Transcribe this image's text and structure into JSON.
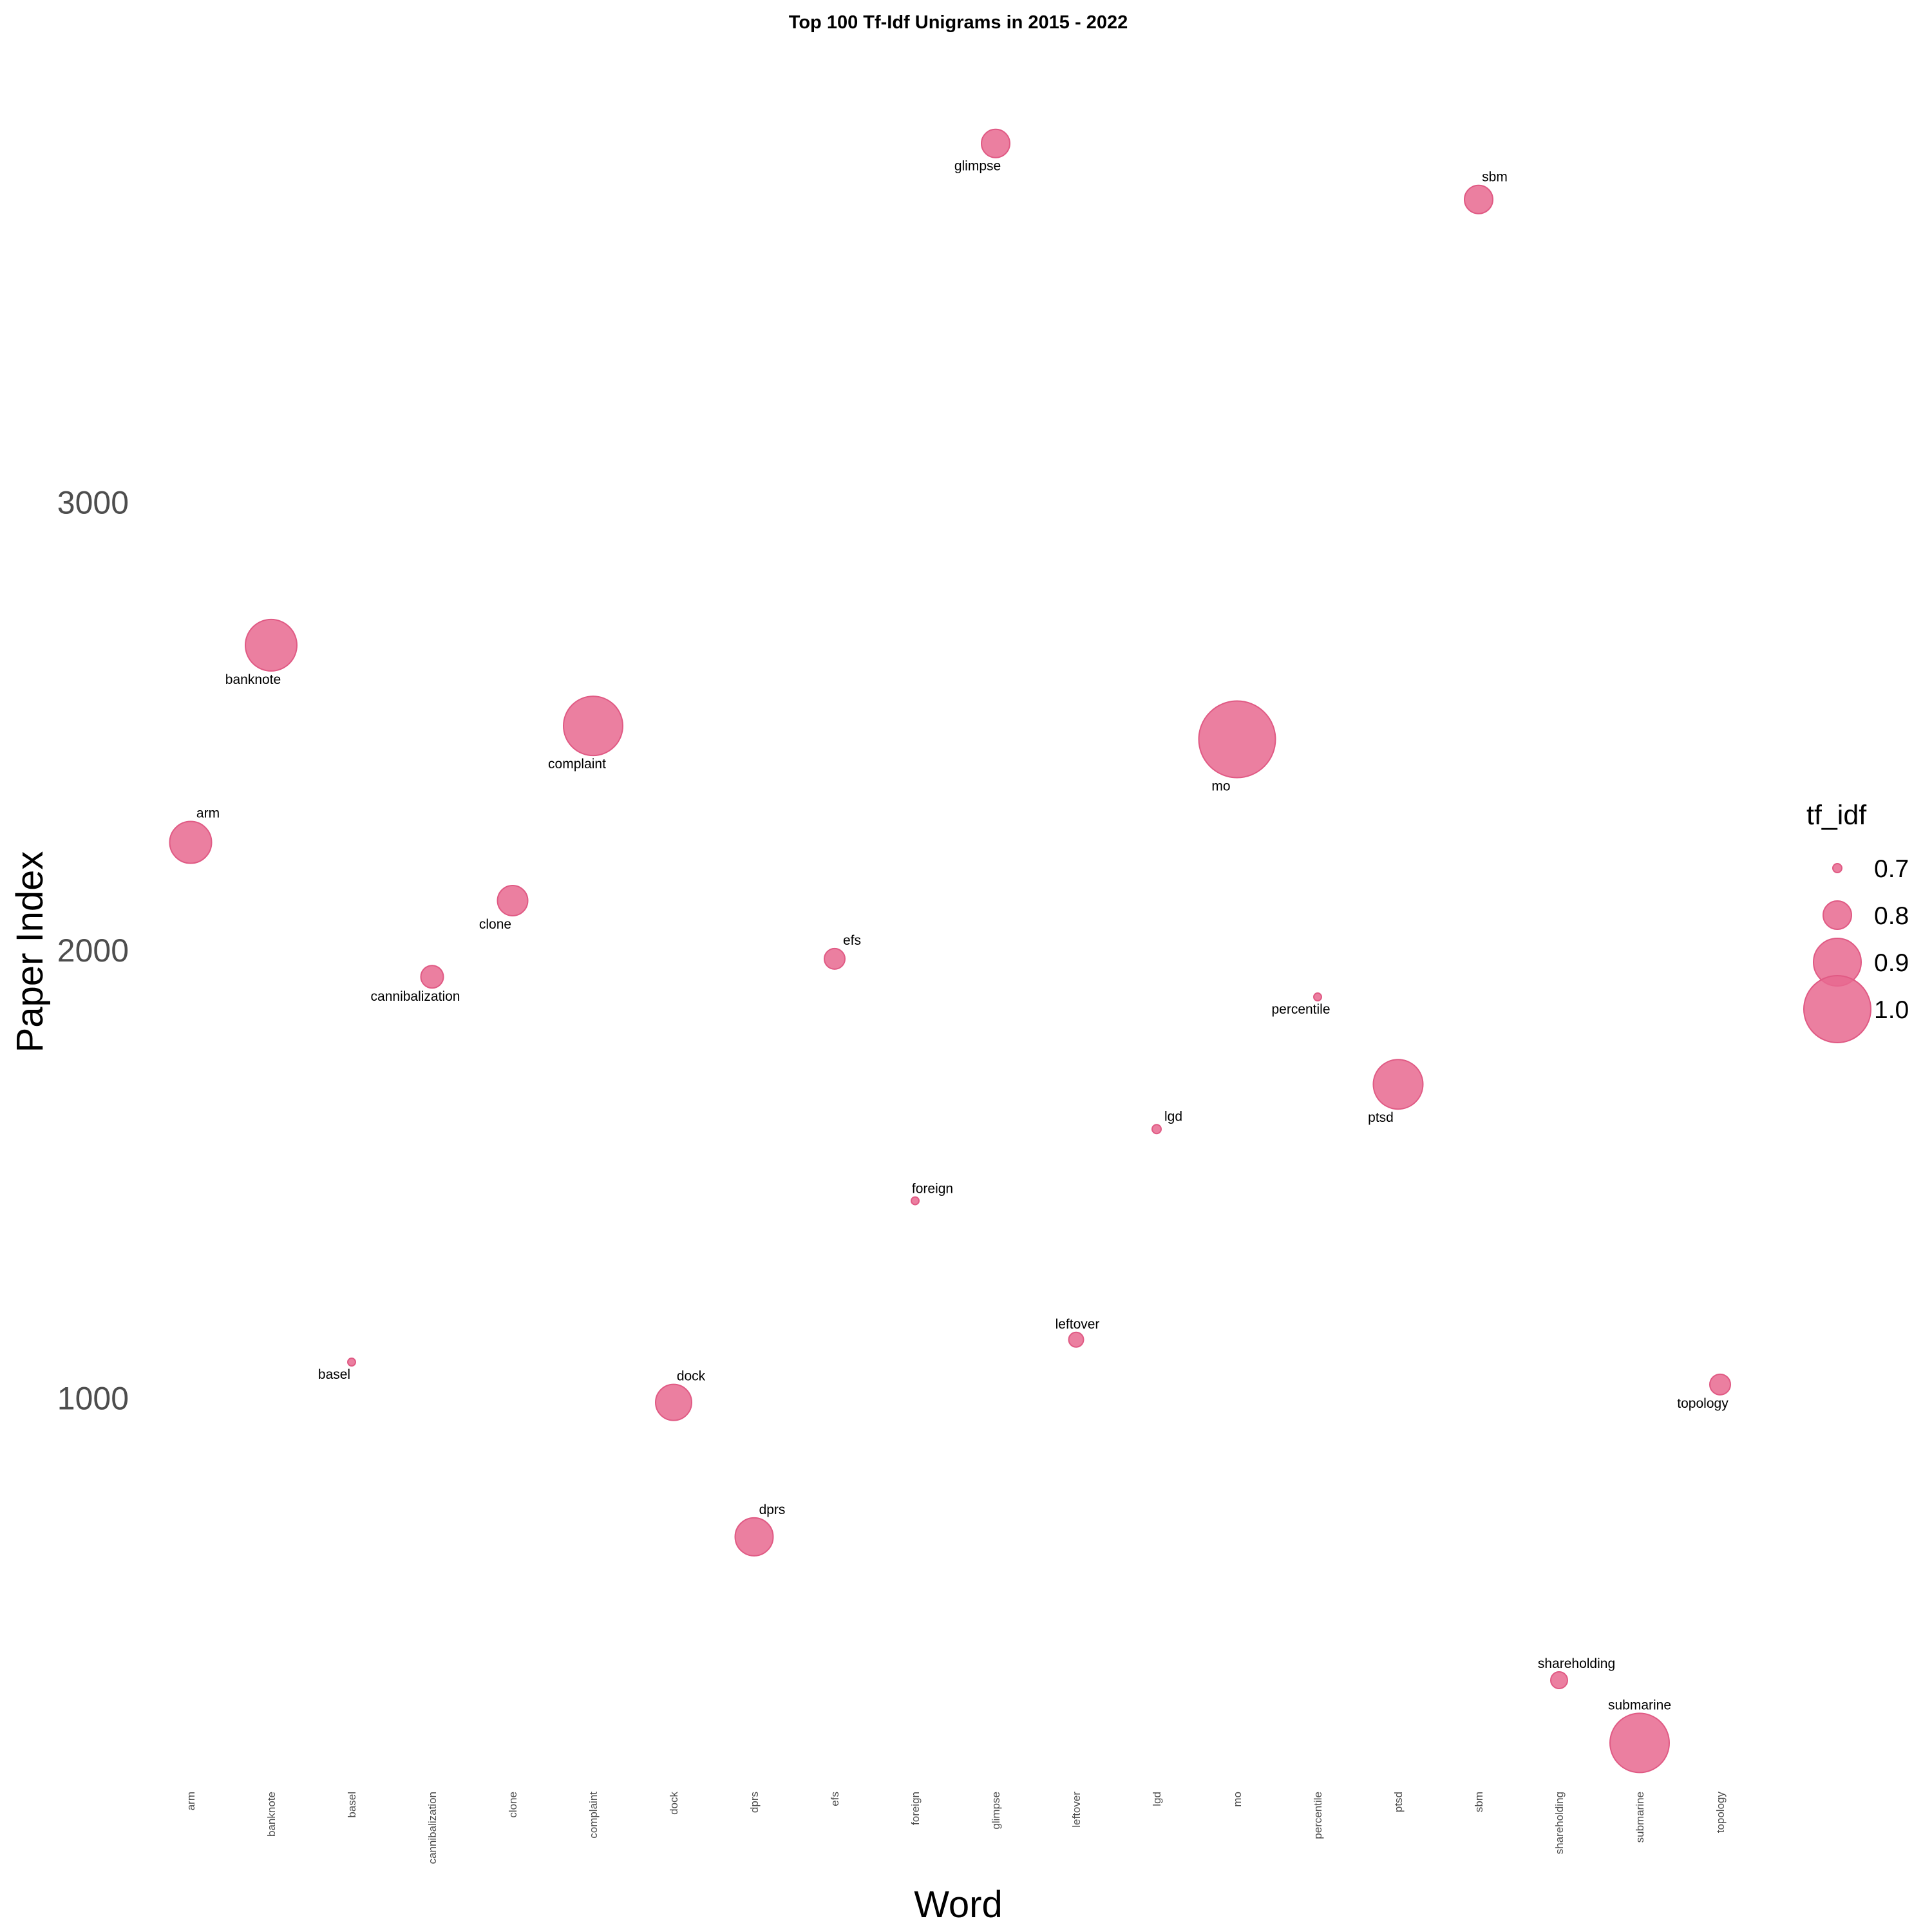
{
  "chart_data": {
    "type": "scatter",
    "title": "Top 100 Tf-Idf Unigrams in 2015 - 2022",
    "xlabel": "Word",
    "ylabel": "Paper Index",
    "size_legend_title": "tf_idf",
    "size_legend_values": [
      0.7,
      0.8,
      0.9,
      1.0
    ],
    "point_color": "#e8688f",
    "yticks": [
      1000,
      2000,
      3000
    ],
    "ylim": [
      200,
      3980
    ],
    "grid": false,
    "legend_position": "right",
    "categories": [
      "arm",
      "banknote",
      "basel",
      "cannibalization",
      "clone",
      "complaint",
      "dock",
      "dprs",
      "efs",
      "foreign",
      "glimpse",
      "leftover",
      "lgd",
      "mo",
      "percentile",
      "ptsd",
      "sbm",
      "shareholding",
      "submarine",
      "topology"
    ],
    "points": [
      {
        "word": "arm",
        "y": 2240,
        "tf_idf": 0.87
      },
      {
        "word": "banknote",
        "y": 2680,
        "tf_idf": 0.92
      },
      {
        "word": "basel",
        "y": 1080,
        "tf_idf": 0.64
      },
      {
        "word": "cannibalization",
        "y": 1940,
        "tf_idf": 0.77
      },
      {
        "word": "clone",
        "y": 2110,
        "tf_idf": 0.81
      },
      {
        "word": "complaint",
        "y": 2500,
        "tf_idf": 0.96
      },
      {
        "word": "dock",
        "y": 990,
        "tf_idf": 0.84
      },
      {
        "word": "dprs",
        "y": 690,
        "tf_idf": 0.85
      },
      {
        "word": "efs",
        "y": 1980,
        "tf_idf": 0.76
      },
      {
        "word": "foreign",
        "y": 1440,
        "tf_idf": 0.67
      },
      {
        "word": "glimpse",
        "y": 3800,
        "tf_idf": 0.8
      },
      {
        "word": "leftover",
        "y": 1130,
        "tf_idf": 0.73
      },
      {
        "word": "lgd",
        "y": 1600,
        "tf_idf": 0.7
      },
      {
        "word": "mo",
        "y": 2470,
        "tf_idf": 1.05
      },
      {
        "word": "percentile",
        "y": 1895,
        "tf_idf": 0.69
      },
      {
        "word": "ptsd",
        "y": 1700,
        "tf_idf": 0.91
      },
      {
        "word": "sbm",
        "y": 3675,
        "tf_idf": 0.8
      },
      {
        "word": "shareholding",
        "y": 370,
        "tf_idf": 0.74
      },
      {
        "word": "submarine",
        "y": 230,
        "tf_idf": 0.96
      },
      {
        "word": "topology",
        "y": 1030,
        "tf_idf": 0.76
      }
    ]
  }
}
